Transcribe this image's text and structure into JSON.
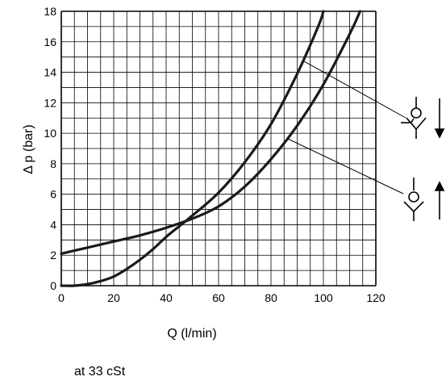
{
  "chart_data": {
    "type": "line",
    "title": "",
    "xlabel": "Q (l/min)",
    "ylabel": "Δ p (bar)",
    "xlim": [
      0,
      120
    ],
    "ylim": [
      0,
      18
    ],
    "x_ticks": [
      0,
      20,
      40,
      60,
      80,
      100,
      120
    ],
    "y_ticks": [
      0,
      2,
      4,
      6,
      8,
      10,
      12,
      14,
      16,
      18
    ],
    "grid": true,
    "series": [
      {
        "values": [
          [
            0,
            0
          ],
          [
            5,
            0
          ],
          [
            10,
            0.1
          ],
          [
            15,
            0.3
          ],
          [
            20,
            0.6
          ],
          [
            25,
            1.1
          ],
          [
            30,
            1.7
          ],
          [
            35,
            2.4
          ],
          [
            40,
            3.2
          ],
          [
            45,
            3.9
          ],
          [
            50,
            4.6
          ],
          [
            60,
            6.1
          ],
          [
            70,
            8.1
          ],
          [
            80,
            10.6
          ],
          [
            90,
            13.9
          ],
          [
            98,
            17.0
          ],
          [
            100,
            18.0
          ]
        ]
      },
      {
        "values": [
          [
            0,
            2.1
          ],
          [
            10,
            2.5
          ],
          [
            20,
            2.9
          ],
          [
            30,
            3.3
          ],
          [
            40,
            3.8
          ],
          [
            50,
            4.4
          ],
          [
            60,
            5.2
          ],
          [
            70,
            6.5
          ],
          [
            80,
            8.3
          ],
          [
            90,
            10.5
          ],
          [
            100,
            13.2
          ],
          [
            110,
            16.5
          ],
          [
            114,
            18.0
          ]
        ]
      }
    ],
    "annotations": [
      "at 33 cSt"
    ]
  },
  "colors": {
    "curve": "#1a1a1a",
    "grid": "#000000"
  },
  "icons": [
    "check-valve-spring-down-icon",
    "check-valve-up-icon"
  ]
}
